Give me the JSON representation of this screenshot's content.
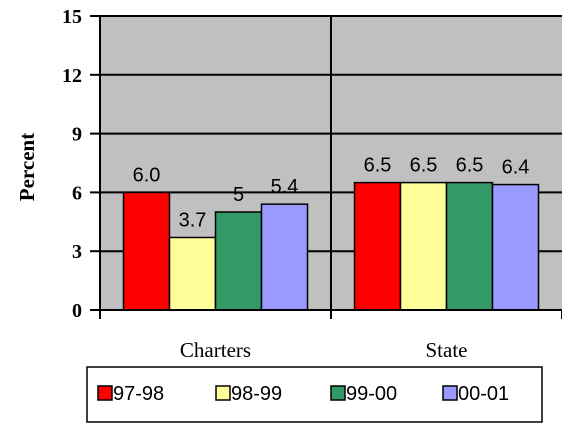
{
  "chart_data": {
    "type": "bar",
    "title": "",
    "xlabel": "",
    "ylabel": "Percent",
    "ylim": [
      0,
      15
    ],
    "yticks": [
      0,
      3,
      6,
      9,
      12,
      15
    ],
    "ytick_labels": [
      "0",
      "3",
      "6",
      "9",
      "12",
      "15"
    ],
    "grid": true,
    "legend_position": "bottom",
    "categories": [
      "Charters",
      "State"
    ],
    "series": [
      {
        "name": "97-98",
        "values": [
          6.0,
          6.5
        ],
        "labels": [
          "6.0",
          "6.5"
        ],
        "color": "#ff0000"
      },
      {
        "name": "98-99",
        "values": [
          3.7,
          6.5
        ],
        "labels": [
          "3.7",
          "6.5"
        ],
        "color": "#ffff99"
      },
      {
        "name": "99-00",
        "values": [
          5.0,
          6.5
        ],
        "labels": [
          "5",
          "6.5"
        ],
        "color": "#339966"
      },
      {
        "name": "00-01",
        "values": [
          5.4,
          6.4
        ],
        "labels": [
          "5.4",
          "6.4"
        ],
        "color": "#9999ff"
      }
    ],
    "plot_background": "#c0c0c0"
  }
}
